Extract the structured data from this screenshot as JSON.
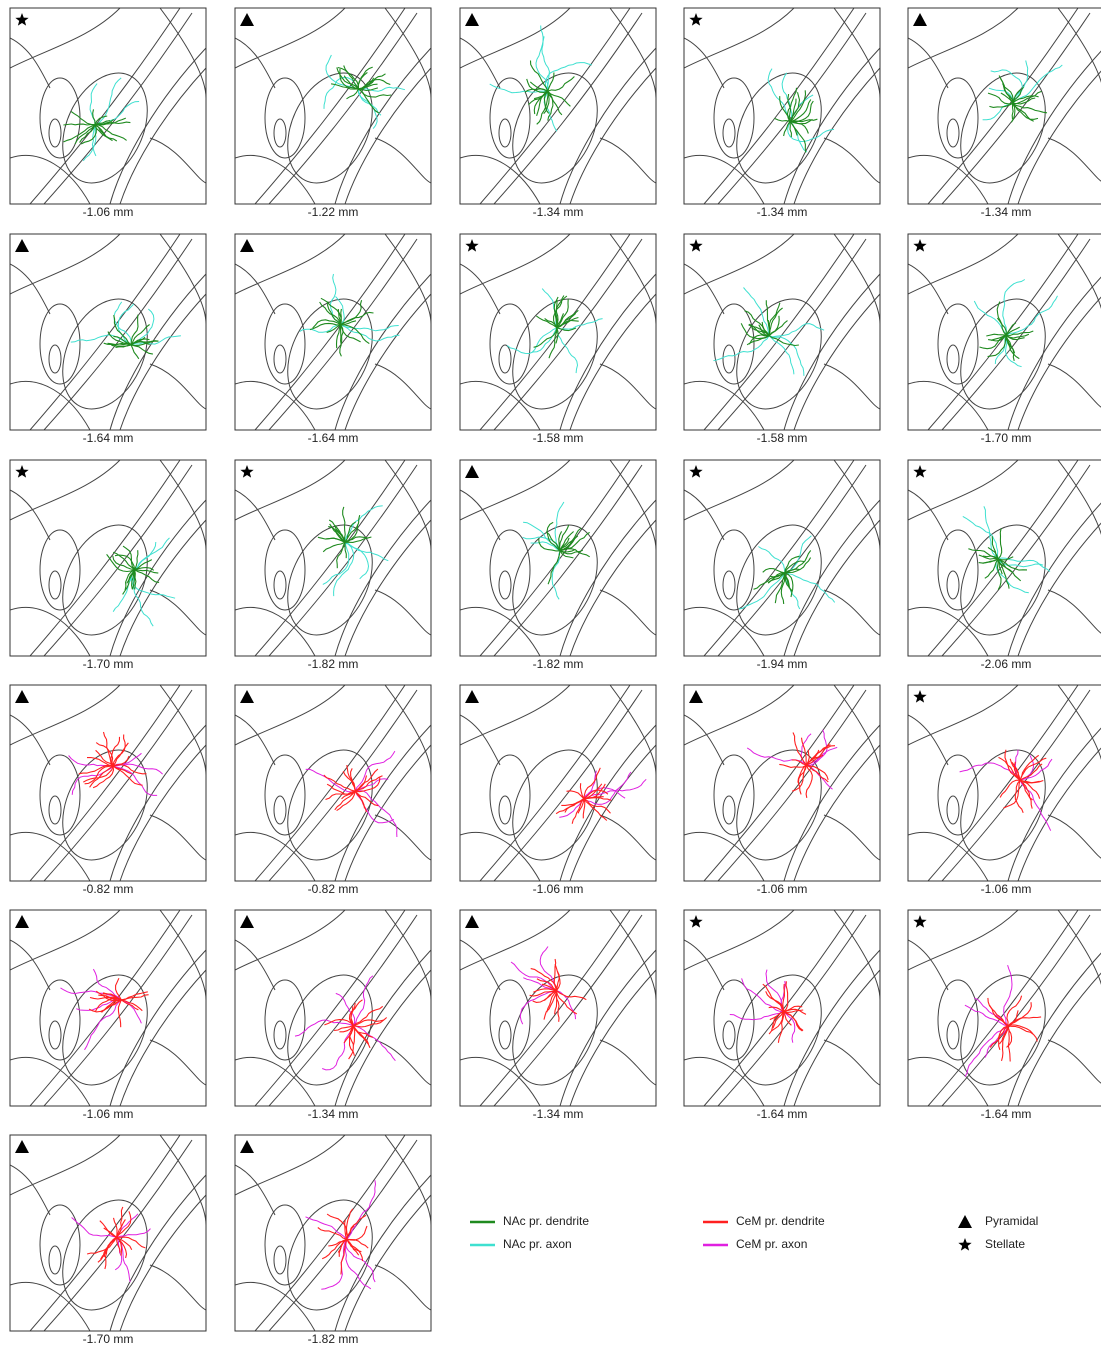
{
  "panels": [
    {
      "label": "-1.06 mm",
      "marker": "star",
      "colors": [
        "#1f8a1f",
        "#3ee0d0"
      ]
    },
    {
      "label": "-1.22 mm",
      "marker": "triangle",
      "colors": [
        "#1f8a1f",
        "#3ee0d0"
      ]
    },
    {
      "label": "-1.34 mm",
      "marker": "triangle",
      "colors": [
        "#1f8a1f",
        "#3ee0d0"
      ]
    },
    {
      "label": "-1.34 mm",
      "marker": "star",
      "colors": [
        "#1f8a1f",
        "#3ee0d0"
      ]
    },
    {
      "label": "-1.34 mm",
      "marker": "triangle",
      "colors": [
        "#1f8a1f",
        "#3ee0d0"
      ]
    },
    {
      "label": "-1.64 mm",
      "marker": "triangle",
      "colors": [
        "#1f8a1f",
        "#3ee0d0"
      ]
    },
    {
      "label": "-1.64 mm",
      "marker": "triangle",
      "colors": [
        "#1f8a1f",
        "#3ee0d0"
      ]
    },
    {
      "label": "-1.58 mm",
      "marker": "star",
      "colors": [
        "#1f8a1f",
        "#3ee0d0"
      ]
    },
    {
      "label": "-1.58 mm",
      "marker": "star",
      "colors": [
        "#1f8a1f",
        "#3ee0d0"
      ]
    },
    {
      "label": "-1.70 mm",
      "marker": "star",
      "colors": [
        "#1f8a1f",
        "#3ee0d0"
      ]
    },
    {
      "label": "-1.70 mm",
      "marker": "star",
      "colors": [
        "#1f8a1f",
        "#3ee0d0"
      ]
    },
    {
      "label": "-1.82 mm",
      "marker": "star",
      "colors": [
        "#1f8a1f",
        "#3ee0d0"
      ]
    },
    {
      "label": "-1.82 mm",
      "marker": "triangle",
      "colors": [
        "#1f8a1f",
        "#3ee0d0"
      ]
    },
    {
      "label": "-1.94 mm",
      "marker": "star",
      "colors": [
        "#1f8a1f",
        "#3ee0d0"
      ]
    },
    {
      "label": "-2.06 mm",
      "marker": "star",
      "colors": [
        "#1f8a1f",
        "#3ee0d0"
      ]
    },
    {
      "label": "-0.82 mm",
      "marker": "triangle",
      "colors": [
        "#ff2020",
        "#e020e0"
      ]
    },
    {
      "label": "-0.82 mm",
      "marker": "triangle",
      "colors": [
        "#ff2020",
        "#e020e0"
      ]
    },
    {
      "label": "-1.06 mm",
      "marker": "triangle",
      "colors": [
        "#ff2020",
        "#e020e0"
      ]
    },
    {
      "label": "-1.06 mm",
      "marker": "triangle",
      "colors": [
        "#ff2020",
        "#e020e0"
      ]
    },
    {
      "label": "-1.06 mm",
      "marker": "star",
      "colors": [
        "#ff2020",
        "#e020e0"
      ]
    },
    {
      "label": "-1.06 mm",
      "marker": "triangle",
      "colors": [
        "#ff2020",
        "#e020e0"
      ]
    },
    {
      "label": "-1.34 mm",
      "marker": "triangle",
      "colors": [
        "#ff2020",
        "#e020e0"
      ]
    },
    {
      "label": "-1.34 mm",
      "marker": "triangle",
      "colors": [
        "#ff2020",
        "#e020e0"
      ]
    },
    {
      "label": "-1.64 mm",
      "marker": "star",
      "colors": [
        "#ff2020",
        "#e020e0"
      ]
    },
    {
      "label": "-1.64 mm",
      "marker": "star",
      "colors": [
        "#ff2020",
        "#e020e0"
      ]
    },
    {
      "label": "-1.70 mm",
      "marker": "triangle",
      "colors": [
        "#ff2020",
        "#e020e0"
      ]
    },
    {
      "label": "-1.82 mm",
      "marker": "triangle",
      "colors": [
        "#ff2020",
        "#e020e0"
      ]
    }
  ],
  "legend": {
    "lines": [
      {
        "name": "NAc pr. dendrite",
        "color": "#1f8a1f"
      },
      {
        "name": "NAc pr. axon",
        "color": "#3ee0d0"
      },
      {
        "name": "CeM pr. dendrite",
        "color": "#ff2020"
      },
      {
        "name": "CeM pr. axon",
        "color": "#e020e0"
      }
    ],
    "markers": [
      {
        "name": "Pyramidal",
        "marker": "triangle"
      },
      {
        "name": "Stellate",
        "marker": "star"
      }
    ]
  }
}
